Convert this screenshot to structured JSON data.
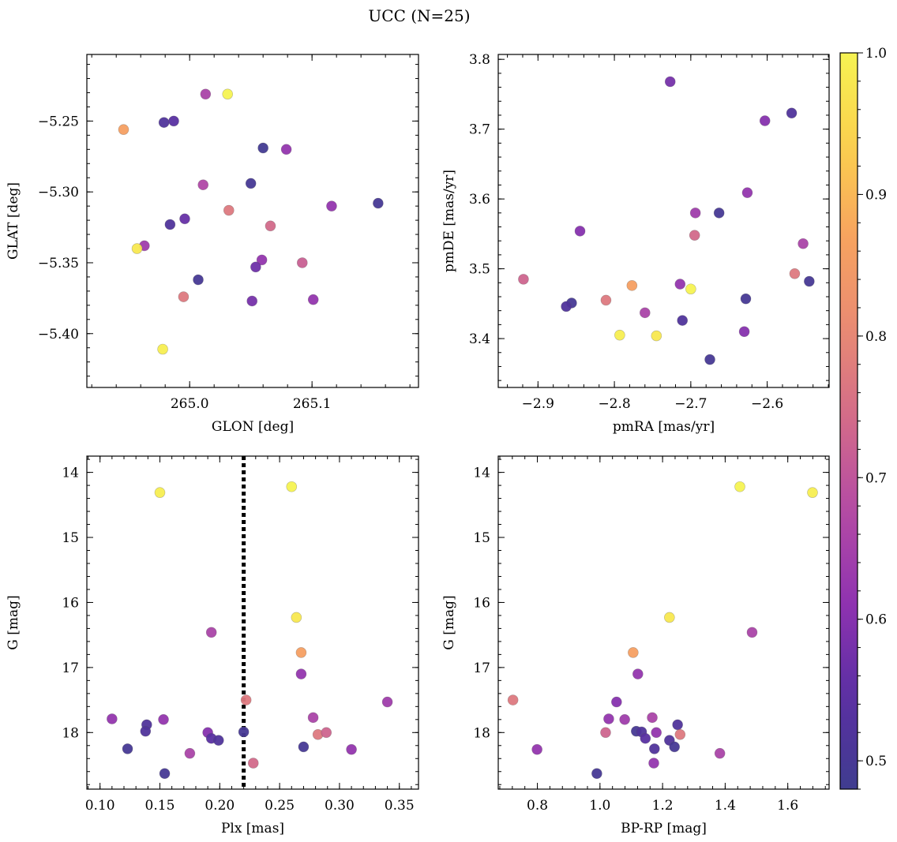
{
  "title": "UCC (N=25)",
  "colorbar": {
    "min": 0.48,
    "max": 1.0,
    "ticks": [
      "0.5",
      "0.6",
      "0.7",
      "0.8",
      "0.9",
      "1.0"
    ],
    "tick_values": [
      0.5,
      0.6,
      0.7,
      0.8,
      0.9,
      1.0
    ],
    "colors": [
      "#3f3d8f",
      "#5a2fa3",
      "#8e32b0",
      "#b34aa5",
      "#d26a8a",
      "#e98a73",
      "#f7a35f",
      "#fbd04d",
      "#f6f352"
    ]
  },
  "chart_data": [
    {
      "type": "scatter",
      "id": "glon-glat",
      "xlabel": "GLON [deg]",
      "ylabel": "GLAT [deg]",
      "xlim": [
        264.916,
        265.187
      ],
      "ylim": [
        -5.438,
        -5.203
      ],
      "xticks": [
        265.0,
        265.1
      ],
      "xtick_labels": [
        "265.0",
        "265.1"
      ],
      "yticks": [
        -5.25,
        -5.3,
        -5.35,
        -5.4
      ],
      "ytick_labels": [
        "−5.25",
        "−5.30",
        "−5.35",
        "−5.40"
      ],
      "points": [
        {
          "x": 264.946,
          "y": -5.256,
          "c": 0.86
        },
        {
          "x": 264.979,
          "y": -5.251,
          "c": 0.52
        },
        {
          "x": 264.987,
          "y": -5.25,
          "c": 0.54
        },
        {
          "x": 265.013,
          "y": -5.231,
          "c": 0.66
        },
        {
          "x": 265.031,
          "y": -5.231,
          "c": 1.0
        },
        {
          "x": 265.06,
          "y": -5.269,
          "c": 0.49
        },
        {
          "x": 265.079,
          "y": -5.27,
          "c": 0.62
        },
        {
          "x": 265.011,
          "y": -5.295,
          "c": 0.67
        },
        {
          "x": 265.05,
          "y": -5.294,
          "c": 0.5
        },
        {
          "x": 265.032,
          "y": -5.313,
          "c": 0.77
        },
        {
          "x": 265.154,
          "y": -5.308,
          "c": 0.5
        },
        {
          "x": 265.116,
          "y": -5.31,
          "c": 0.62
        },
        {
          "x": 264.984,
          "y": -5.323,
          "c": 0.52
        },
        {
          "x": 264.996,
          "y": -5.319,
          "c": 0.56
        },
        {
          "x": 265.066,
          "y": -5.324,
          "c": 0.74
        },
        {
          "x": 264.963,
          "y": -5.338,
          "c": 0.64
        },
        {
          "x": 264.957,
          "y": -5.34,
          "c": 0.98
        },
        {
          "x": 265.059,
          "y": -5.348,
          "c": 0.62
        },
        {
          "x": 265.054,
          "y": -5.353,
          "c": 0.57
        },
        {
          "x": 265.092,
          "y": -5.35,
          "c": 0.72
        },
        {
          "x": 265.007,
          "y": -5.362,
          "c": 0.5
        },
        {
          "x": 264.995,
          "y": -5.374,
          "c": 0.77
        },
        {
          "x": 265.051,
          "y": -5.377,
          "c": 0.58
        },
        {
          "x": 265.101,
          "y": -5.376,
          "c": 0.62
        },
        {
          "x": 264.978,
          "y": -5.411,
          "c": 0.99
        }
      ]
    },
    {
      "type": "scatter",
      "id": "pmra-pmde",
      "xlabel": "pmRA [mas/yr]",
      "ylabel": "pmDE [mas/yr]",
      "xlim": [
        -2.952,
        -2.519
      ],
      "ylim": [
        3.33,
        3.807
      ],
      "xticks": [
        -2.9,
        -2.8,
        -2.7,
        -2.6
      ],
      "xtick_labels": [
        "−2.9",
        "−2.8",
        "−2.7",
        "−2.6"
      ],
      "yticks": [
        3.4,
        3.5,
        3.6,
        3.7,
        3.8
      ],
      "ytick_labels": [
        "3.4",
        "3.5",
        "3.6",
        "3.7",
        "3.8"
      ],
      "points": [
        {
          "x": -2.727,
          "y": 3.768,
          "c": 0.58
        },
        {
          "x": -2.568,
          "y": 3.723,
          "c": 0.52
        },
        {
          "x": -2.603,
          "y": 3.712,
          "c": 0.6
        },
        {
          "x": -2.626,
          "y": 3.609,
          "c": 0.62
        },
        {
          "x": -2.694,
          "y": 3.58,
          "c": 0.64
        },
        {
          "x": -2.663,
          "y": 3.58,
          "c": 0.5
        },
        {
          "x": -2.845,
          "y": 3.554,
          "c": 0.6
        },
        {
          "x": -2.695,
          "y": 3.548,
          "c": 0.74
        },
        {
          "x": -2.553,
          "y": 3.536,
          "c": 0.66
        },
        {
          "x": -2.564,
          "y": 3.493,
          "c": 0.77
        },
        {
          "x": -2.545,
          "y": 3.482,
          "c": 0.5
        },
        {
          "x": -2.919,
          "y": 3.485,
          "c": 0.73
        },
        {
          "x": -2.714,
          "y": 3.478,
          "c": 0.62
        },
        {
          "x": -2.777,
          "y": 3.476,
          "c": 0.86
        },
        {
          "x": -2.7,
          "y": 3.471,
          "c": 1.0
        },
        {
          "x": -2.628,
          "y": 3.457,
          "c": 0.5
        },
        {
          "x": -2.811,
          "y": 3.455,
          "c": 0.77
        },
        {
          "x": -2.856,
          "y": 3.451,
          "c": 0.5
        },
        {
          "x": -2.863,
          "y": 3.446,
          "c": 0.52
        },
        {
          "x": -2.76,
          "y": 3.437,
          "c": 0.66
        },
        {
          "x": -2.711,
          "y": 3.426,
          "c": 0.52
        },
        {
          "x": -2.63,
          "y": 3.41,
          "c": 0.6
        },
        {
          "x": -2.793,
          "y": 3.405,
          "c": 0.99
        },
        {
          "x": -2.745,
          "y": 3.404,
          "c": 0.98
        },
        {
          "x": -2.675,
          "y": 3.37,
          "c": 0.5
        }
      ]
    },
    {
      "type": "scatter",
      "id": "plx-g",
      "xlabel": "Plx [mas]",
      "ylabel": "G [mag]",
      "xlim": [
        0.089,
        0.366
      ],
      "ylim": [
        18.87,
        13.75
      ],
      "y_inverted": true,
      "xticks": [
        0.1,
        0.15,
        0.2,
        0.25,
        0.3,
        0.35
      ],
      "xtick_labels": [
        "0.10",
        "0.15",
        "0.20",
        "0.25",
        "0.30",
        "0.35"
      ],
      "yticks": [
        14,
        15,
        16,
        17,
        18
      ],
      "ytick_labels": [
        "14",
        "15",
        "16",
        "17",
        "18"
      ],
      "vline": 0.22,
      "points": [
        {
          "x": 0.15,
          "y": 14.31,
          "c": 0.99
        },
        {
          "x": 0.26,
          "y": 14.22,
          "c": 1.0
        },
        {
          "x": 0.264,
          "y": 16.23,
          "c": 0.98
        },
        {
          "x": 0.193,
          "y": 16.46,
          "c": 0.66
        },
        {
          "x": 0.268,
          "y": 16.77,
          "c": 0.86
        },
        {
          "x": 0.268,
          "y": 17.1,
          "c": 0.62
        },
        {
          "x": 0.222,
          "y": 17.5,
          "c": 0.77
        },
        {
          "x": 0.34,
          "y": 17.53,
          "c": 0.64
        },
        {
          "x": 0.11,
          "y": 17.79,
          "c": 0.62
        },
        {
          "x": 0.153,
          "y": 17.8,
          "c": 0.62
        },
        {
          "x": 0.278,
          "y": 17.77,
          "c": 0.66
        },
        {
          "x": 0.139,
          "y": 17.88,
          "c": 0.52
        },
        {
          "x": 0.138,
          "y": 17.98,
          "c": 0.52
        },
        {
          "x": 0.19,
          "y": 18.0,
          "c": 0.6
        },
        {
          "x": 0.22,
          "y": 17.99,
          "c": 0.5
        },
        {
          "x": 0.282,
          "y": 18.03,
          "c": 0.77
        },
        {
          "x": 0.289,
          "y": 18.0,
          "c": 0.73
        },
        {
          "x": 0.193,
          "y": 18.09,
          "c": 0.54
        },
        {
          "x": 0.199,
          "y": 18.12,
          "c": 0.52
        },
        {
          "x": 0.27,
          "y": 18.22,
          "c": 0.5
        },
        {
          "x": 0.123,
          "y": 18.25,
          "c": 0.5
        },
        {
          "x": 0.31,
          "y": 18.26,
          "c": 0.62
        },
        {
          "x": 0.175,
          "y": 18.32,
          "c": 0.66
        },
        {
          "x": 0.228,
          "y": 18.47,
          "c": 0.74
        },
        {
          "x": 0.154,
          "y": 18.63,
          "c": 0.5
        }
      ]
    },
    {
      "type": "scatter",
      "id": "bprp-g",
      "xlabel": "BP-RP [mag]",
      "ylabel": "G [mag]",
      "xlim": [
        0.675,
        1.732
      ],
      "ylim": [
        18.87,
        13.75
      ],
      "y_inverted": true,
      "xticks": [
        0.8,
        1.0,
        1.2,
        1.4,
        1.6
      ],
      "xtick_labels": [
        "0.8",
        "1.0",
        "1.2",
        "1.4",
        "1.6"
      ],
      "yticks": [
        14,
        15,
        16,
        17,
        18
      ],
      "ytick_labels": [
        "14",
        "15",
        "16",
        "17",
        "18"
      ],
      "points": [
        {
          "x": 1.447,
          "y": 14.22,
          "c": 1.0
        },
        {
          "x": 1.679,
          "y": 14.31,
          "c": 0.99
        },
        {
          "x": 1.222,
          "y": 16.23,
          "c": 0.98
        },
        {
          "x": 1.486,
          "y": 16.46,
          "c": 0.66
        },
        {
          "x": 1.106,
          "y": 16.77,
          "c": 0.86
        },
        {
          "x": 1.121,
          "y": 17.1,
          "c": 0.62
        },
        {
          "x": 0.722,
          "y": 17.5,
          "c": 0.77
        },
        {
          "x": 1.053,
          "y": 17.53,
          "c": 0.6
        },
        {
          "x": 1.028,
          "y": 17.79,
          "c": 0.62
        },
        {
          "x": 1.079,
          "y": 17.8,
          "c": 0.64
        },
        {
          "x": 1.167,
          "y": 17.77,
          "c": 0.66
        },
        {
          "x": 1.248,
          "y": 17.88,
          "c": 0.52
        },
        {
          "x": 1.116,
          "y": 17.98,
          "c": 0.5
        },
        {
          "x": 1.133,
          "y": 17.99,
          "c": 0.52
        },
        {
          "x": 1.018,
          "y": 18.0,
          "c": 0.73
        },
        {
          "x": 1.18,
          "y": 18.0,
          "c": 0.62
        },
        {
          "x": 1.256,
          "y": 18.03,
          "c": 0.77
        },
        {
          "x": 1.145,
          "y": 18.09,
          "c": 0.54
        },
        {
          "x": 1.222,
          "y": 18.12,
          "c": 0.52
        },
        {
          "x": 1.174,
          "y": 18.25,
          "c": 0.52
        },
        {
          "x": 1.238,
          "y": 18.22,
          "c": 0.5
        },
        {
          "x": 0.799,
          "y": 18.26,
          "c": 0.62
        },
        {
          "x": 1.383,
          "y": 18.32,
          "c": 0.66
        },
        {
          "x": 1.172,
          "y": 18.47,
          "c": 0.62
        },
        {
          "x": 0.99,
          "y": 18.63,
          "c": 0.5
        }
      ]
    }
  ]
}
